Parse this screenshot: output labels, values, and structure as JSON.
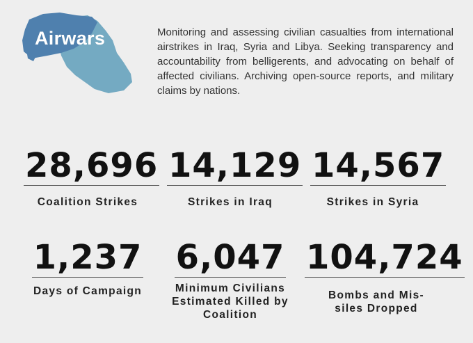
{
  "brand": {
    "name": "Airwars",
    "colors": {
      "map_light": "#74aac2",
      "map_dark": "#4f80ae",
      "background": "#eeeeee"
    }
  },
  "description": "Monitoring and assessing civilian casualties from international airstrikes in Iraq, Syria and Libya. Seeking transparency and accountability from belligerents, and advocating on behalf of affected civilians. Archiving open-source reports, and military claims by nations.",
  "stats": [
    {
      "value": "28,696",
      "label_lines": [
        "Coalition Strikes"
      ]
    },
    {
      "value": "14,129",
      "label_lines": [
        "Strikes in Iraq"
      ]
    },
    {
      "value": "14,567",
      "label_lines": [
        "Strikes in Syria"
      ]
    },
    {
      "value": "1,237",
      "label_lines": [
        "Days of Campaign"
      ]
    },
    {
      "value": "6,047",
      "label_lines": [
        "Minimum Civilians",
        "Estimated Killed by",
        "Coalition"
      ]
    },
    {
      "value": "104,724",
      "label_lines": [
        "Bombs and Mis-",
        "siles Dropped"
      ]
    }
  ]
}
